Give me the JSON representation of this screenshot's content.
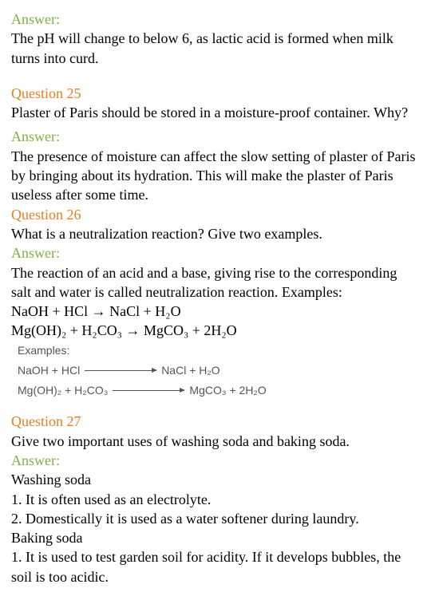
{
  "q24": {
    "answerLabel": "Answer:",
    "answerText": "The pH will change to below 6, as lactic acid is formed when milk turns into curd."
  },
  "q25": {
    "questionLabel": "Question 25",
    "questionText": "Plaster of Paris should be stored in a moisture-proof container. Why?",
    "answerLabel": "Answer:",
    "answerText": "The presence of moisture can affect the slow setting of plaster of Paris by bringing about its hydration. This will make the plaster of Paris useless after some time."
  },
  "q26": {
    "questionLabel": "Question 26",
    "questionText": "What is a neutralization reaction? Give two examples.",
    "answerLabel": "Answer:",
    "answerText": "The reaction of an acid and a base, giving rise to the corresponding salt and water is called neutralization reaction. Examples:",
    "eq1": "NaOH + HCl → NaCl + H₂O",
    "eq2": "Mg(OH)₂ + H₂CO₃ → MgCO₃ + 2H₂O",
    "box": {
      "title": "Examples:",
      "row1left": "NaOH + HCl",
      "row1right": "NaCl + H₂O",
      "row2left": "Mg(OH)₂ + H₂CO₃",
      "row2right": "MgCO₃ + 2H₂O"
    }
  },
  "q27": {
    "questionLabel": "Question 27",
    "questionText": "Give two important uses of washing soda and baking soda.",
    "answerLabel": "Answer:",
    "line1": "Washing soda",
    "line2": "1. It is often used as an electrolyte.",
    "line3": "2. Domestically it is used as a water softener during laundry.",
    "line4": "Baking soda",
    "line5": "1. It is used to test garden soil for acidity. If it develops bubbles, the soil is too acidic."
  }
}
